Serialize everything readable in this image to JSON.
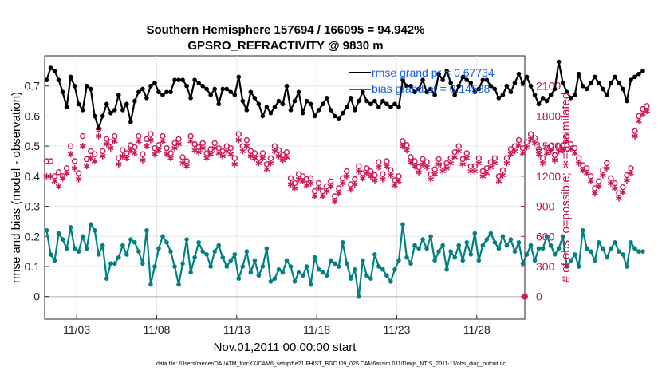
{
  "chart_data": {
    "type": "line",
    "title_line1": "Southern Hemisphere 157694 / 166095 = 94.942%",
    "title_line2": "GPSRO_REFRACTIVITY @ 9830 m",
    "xlabel": "Nov.01,2011 00:00:00 start",
    "ylabel_left": "rmse and bias (model - observation)",
    "ylabel_right": "# of obs: o=possible; ∗=assimilated",
    "footnote": "data file: /Users/raeder/DAI/ATM_forcXX/CAM6_setup/f.e21.FHIST_BGC.f09_025.CAM6assim.011/Diags_NTrS_2011-11/obs_diag_output.nc",
    "xlim": [
      1.0,
      31.0
    ],
    "ylim_left": [
      -0.075,
      0.8
    ],
    "ylim_right": [
      -225,
      2400
    ],
    "xticks": [
      3,
      8,
      13,
      18,
      23,
      28
    ],
    "xtick_labels": [
      "11/03",
      "11/08",
      "11/13",
      "11/18",
      "11/23",
      "11/28"
    ],
    "yticks_left": [
      0,
      0.1,
      0.2,
      0.3,
      0.4,
      0.5,
      0.6,
      0.7
    ],
    "yticks_left_labels": [
      "0",
      "0.1",
      "0.2",
      "0.3",
      "0.4",
      "0.5",
      "0.6",
      "0.7"
    ],
    "yticks_right": [
      0,
      300,
      600,
      900,
      1200,
      1500,
      1800,
      2100
    ],
    "yticks_right_labels": [
      "0",
      "300",
      "600",
      "900",
      "1200",
      "1500",
      "1800",
      "2100"
    ],
    "time_start": 1.125,
    "time_step": 0.25,
    "series": [
      {
        "name": "rmse",
        "legend": "rmse grand pr = 0.67734",
        "color": "#000000",
        "marker": "star",
        "values": [
          0.72,
          0.76,
          0.75,
          0.72,
          0.68,
          0.63,
          0.73,
          0.7,
          0.64,
          0.62,
          0.7,
          0.69,
          0.6,
          0.56,
          0.6,
          0.64,
          0.61,
          0.62,
          0.67,
          0.62,
          0.64,
          0.58,
          0.65,
          0.68,
          0.69,
          0.66,
          0.7,
          0.71,
          0.68,
          0.67,
          0.68,
          0.68,
          0.72,
          0.72,
          0.72,
          0.7,
          0.66,
          0.72,
          0.71,
          0.7,
          0.69,
          0.67,
          0.69,
          0.64,
          0.69,
          0.69,
          0.68,
          0.67,
          0.73,
          0.65,
          0.62,
          0.68,
          0.66,
          0.64,
          0.6,
          0.63,
          0.61,
          0.63,
          0.65,
          0.64,
          0.7,
          0.62,
          0.65,
          0.68,
          0.61,
          0.65,
          0.64,
          0.6,
          0.62,
          0.64,
          0.66,
          0.62,
          0.6,
          0.59,
          0.61,
          0.63,
          0.66,
          0.62,
          0.65,
          0.68,
          0.65,
          0.64,
          0.65,
          0.63,
          0.65,
          0.64,
          0.63,
          0.64,
          0.63,
          0.72,
          0.7,
          0.7,
          0.68,
          0.69,
          0.72,
          0.68,
          0.69,
          0.67,
          0.74,
          0.72,
          0.75,
          0.71,
          0.67,
          0.7,
          0.73,
          0.72,
          0.71,
          0.68,
          0.69,
          0.72,
          0.72,
          0.7,
          0.69,
          0.66,
          0.67,
          0.7,
          0.68,
          0.71,
          0.74,
          0.71,
          0.73,
          0.7,
          0.67,
          0.64,
          0.66,
          0.65,
          0.67,
          0.69,
          0.78,
          0.71,
          0.68,
          0.66,
          0.67,
          0.74,
          0.7,
          0.69,
          0.71,
          0.73,
          0.71,
          0.69,
          0.67,
          0.71,
          0.73,
          0.71,
          0.69,
          0.65,
          0.72,
          0.73,
          0.74,
          0.75
        ]
      },
      {
        "name": "bias",
        "legend": "bias grand pr = 0.14588",
        "color": "#008080",
        "marker": "star",
        "values": [
          0.22,
          0.14,
          0.12,
          0.21,
          0.19,
          0.16,
          0.23,
          0.16,
          0.15,
          0.2,
          0.16,
          0.24,
          0.22,
          0.14,
          0.17,
          0.06,
          0.11,
          0.11,
          0.13,
          0.17,
          0.14,
          0.19,
          0.18,
          0.15,
          0.11,
          0.22,
          0.04,
          0.1,
          0.16,
          0.2,
          0.18,
          0.15,
          0.1,
          0.04,
          0.11,
          0.19,
          0.08,
          0.13,
          0.18,
          0.15,
          0.14,
          0.1,
          0.15,
          0.17,
          0.13,
          0.1,
          0.12,
          0.14,
          0.06,
          0.1,
          0.15,
          0.08,
          0.12,
          0.07,
          0.1,
          0.16,
          0.05,
          0.06,
          0.09,
          0.08,
          0.12,
          0.1,
          0.05,
          0.08,
          0.07,
          0.1,
          0.04,
          0.13,
          0.09,
          0.08,
          0.07,
          0.12,
          0.11,
          0.1,
          0.18,
          0.11,
          0.06,
          0.09,
          0.0,
          0.12,
          0.07,
          0.06,
          0.14,
          0.1,
          0.09,
          0.07,
          0.05,
          0.09,
          0.12,
          0.24,
          0.13,
          0.11,
          0.17,
          0.16,
          0.19,
          0.16,
          0.2,
          0.12,
          0.15,
          0.17,
          0.09,
          0.15,
          0.13,
          0.17,
          0.12,
          0.18,
          0.14,
          0.21,
          0.12,
          0.17,
          0.19,
          0.21,
          0.18,
          0.16,
          0.2,
          0.17,
          0.19,
          0.15,
          0.18,
          0.11,
          0.14,
          0.17,
          0.12,
          0.16,
          0.16,
          0.2,
          0.17,
          0.14,
          0.16,
          0.2,
          0.1,
          0.12,
          0.14,
          0.1,
          0.22,
          0.16,
          0.15,
          0.12,
          0.18,
          0.16,
          0.13,
          0.16,
          0.18,
          0.15,
          0.14,
          0.1,
          0.18,
          0.16,
          0.15,
          0.15
        ]
      },
      {
        "name": "obs_possible",
        "axis": "right",
        "color": "#cc1a5a",
        "marker": "circle",
        "values": [
          1350,
          1350,
          1200,
          1240,
          1200,
          1280,
          1500,
          1350,
          1230,
          1600,
          1370,
          1450,
          1420,
          1670,
          1450,
          1570,
          1540,
          1600,
          1380,
          1460,
          1430,
          1510,
          1490,
          1600,
          1420,
          1570,
          1620,
          1480,
          1510,
          1600,
          1480,
          1430,
          1530,
          1570,
          1390,
          1350,
          1600,
          1520,
          1490,
          1530,
          1430,
          1470,
          1530,
          1480,
          1450,
          1500,
          1480,
          1380,
          1620,
          1500,
          1560,
          1450,
          1430,
          1380,
          1430,
          1320,
          1380,
          1500,
          1460,
          1410,
          1440,
          1180,
          1130,
          1220,
          1200,
          1170,
          1180,
          1050,
          1130,
          1050,
          1100,
          1150,
          1000,
          1080,
          1180,
          1250,
          1120,
          1170,
          1300,
          1230,
          1280,
          1250,
          1210,
          1340,
          1220,
          1350,
          1260,
          1160,
          1200,
          1550,
          1510,
          1390,
          1350,
          1290,
          1370,
          1340,
          1220,
          1270,
          1370,
          1300,
          1330,
          1380,
          1440,
          1500,
          1370,
          1430,
          1300,
          1300,
          1380,
          1250,
          1280,
          1340,
          1380,
          1200,
          1260,
          1380,
          1470,
          1500,
          1560,
          1480,
          1540,
          1620,
          1580,
          1470,
          1380,
          1480,
          1500,
          1410,
          1500,
          1510,
          1600,
          1520,
          1480,
          1380,
          1310,
          1280,
          1200,
          1080,
          1150,
          1260,
          1330,
          1180,
          1130,
          1030,
          1090,
          1210,
          1280,
          1650,
          1800,
          1870,
          1900
        ]
      },
      {
        "name": "obs_assimilated",
        "axis": "right",
        "color": "#cc1a5a",
        "marker": "star",
        "values": [
          1200,
          1200,
          1150,
          1100,
          1180,
          1230,
          1420,
          1280,
          1170,
          1500,
          1300,
          1380,
          1350,
          1600,
          1400,
          1520,
          1480,
          1550,
          1320,
          1400,
          1380,
          1460,
          1430,
          1550,
          1360,
          1500,
          1560,
          1420,
          1460,
          1550,
          1420,
          1380,
          1480,
          1520,
          1330,
          1300,
          1550,
          1460,
          1440,
          1480,
          1380,
          1420,
          1480,
          1430,
          1400,
          1450,
          1420,
          1320,
          1560,
          1450,
          1500,
          1400,
          1380,
          1330,
          1380,
          1270,
          1330,
          1450,
          1400,
          1360,
          1390,
          1120,
          1080,
          1170,
          1150,
          1110,
          1130,
          1000,
          1080,
          1000,
          1050,
          1100,
          950,
          1030,
          1130,
          1200,
          1070,
          1120,
          1250,
          1180,
          1230,
          1200,
          1160,
          1290,
          1170,
          1300,
          1210,
          1110,
          1150,
          1500,
          1460,
          1340,
          1300,
          1240,
          1320,
          1290,
          1170,
          1220,
          1320,
          1250,
          1280,
          1330,
          1390,
          1450,
          1320,
          1380,
          1250,
          1250,
          1330,
          1200,
          1230,
          1290,
          1330,
          1150,
          1210,
          1330,
          1420,
          1450,
          1510,
          1430,
          1490,
          1570,
          1530,
          1420,
          1330,
          1430,
          1450,
          1360,
          1450,
          1460,
          1550,
          1470,
          1430,
          1330,
          1260,
          1230,
          1150,
          1030,
          1100,
          1210,
          1280,
          1130,
          1080,
          980,
          1040,
          1160,
          1230,
          1600,
          1750,
          1820,
          1850
        ]
      }
    ],
    "zero_line_color": "#c8c8c8"
  }
}
